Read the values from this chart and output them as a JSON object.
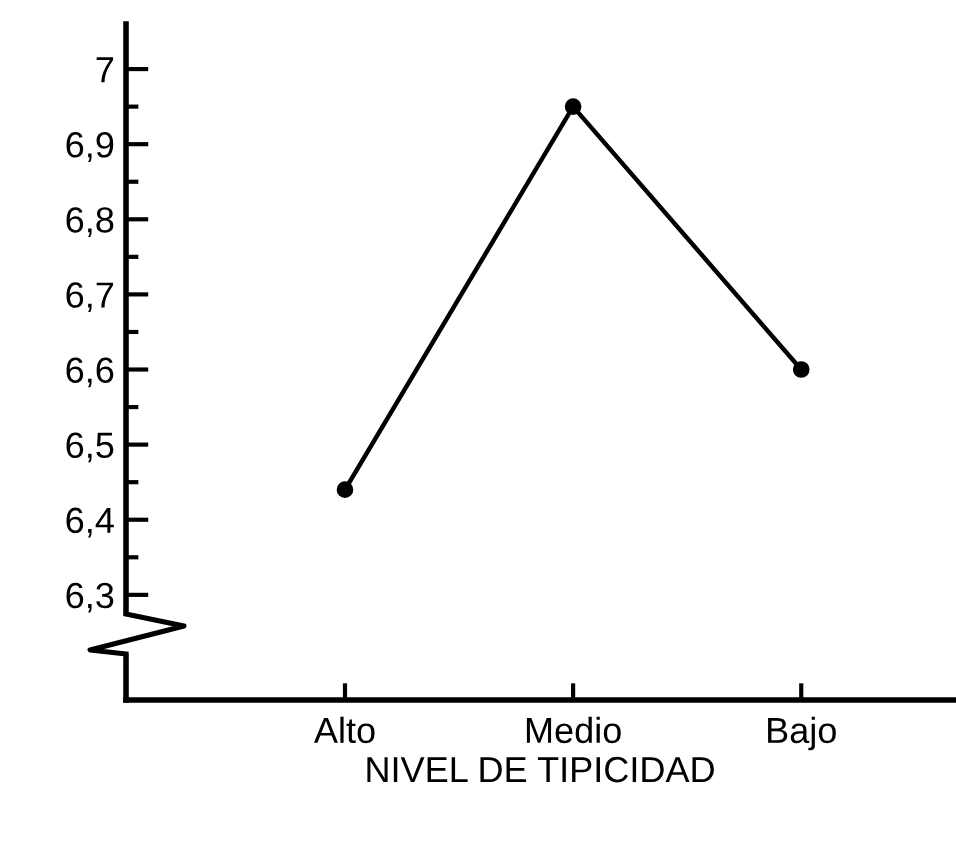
{
  "chart_data": {
    "type": "line",
    "xlabel": "NIVEL DE TIPICIDAD",
    "categories": [
      "Alto",
      "Medio",
      "Bajo"
    ],
    "series": [
      {
        "color": "#000000",
        "values": [
          6.44,
          6.95,
          6.6
        ]
      }
    ],
    "marker": "circle",
    "line_style": "solid",
    "grid": false,
    "ylim": [
      6.16,
      7.06
    ],
    "yticks": [
      {
        "value": 6.3,
        "label": "6,3"
      },
      {
        "value": 6.4,
        "label": "6,4"
      },
      {
        "value": 6.5,
        "label": "6,5"
      },
      {
        "value": 6.6,
        "label": "6,6"
      },
      {
        "value": 6.7,
        "label": "6,7"
      },
      {
        "value": 6.8,
        "label": "6,8"
      },
      {
        "value": 6.9,
        "label": "6,9"
      },
      {
        "value": 7,
        "label": "7"
      }
    ]
  }
}
